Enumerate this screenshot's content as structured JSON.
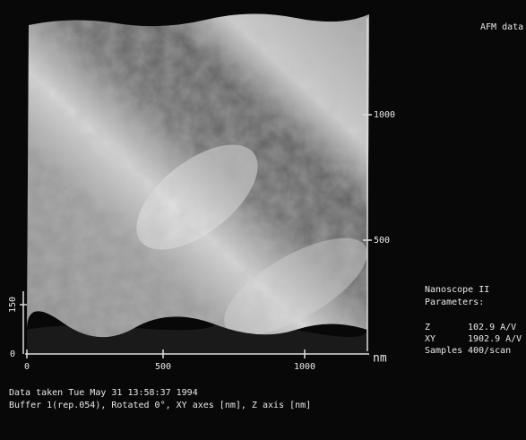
{
  "header": {
    "title": "AFM data"
  },
  "image": {
    "right_axis": {
      "ticks": [
        "1000",
        "500"
      ]
    },
    "x_axis": {
      "ticks": [
        "0",
        "500",
        "1000"
      ],
      "unit": "nm"
    },
    "z_axis": {
      "ticks": [
        "150",
        "0"
      ]
    }
  },
  "parameters": {
    "title": "Nanoscope II",
    "subtitle": "Parameters:",
    "rows": [
      [
        "Z",
        "102.9 A/V"
      ],
      [
        "XY",
        "1902.9 A/V"
      ],
      [
        "Samples",
        "400/scan"
      ]
    ]
  },
  "footer": {
    "lines": [
      "Data taken Tue May 31 13:58:37 1994",
      "Buffer 1(rep.054), Rotated 0°, XY axes [nm], Z axis [nm]"
    ]
  }
}
